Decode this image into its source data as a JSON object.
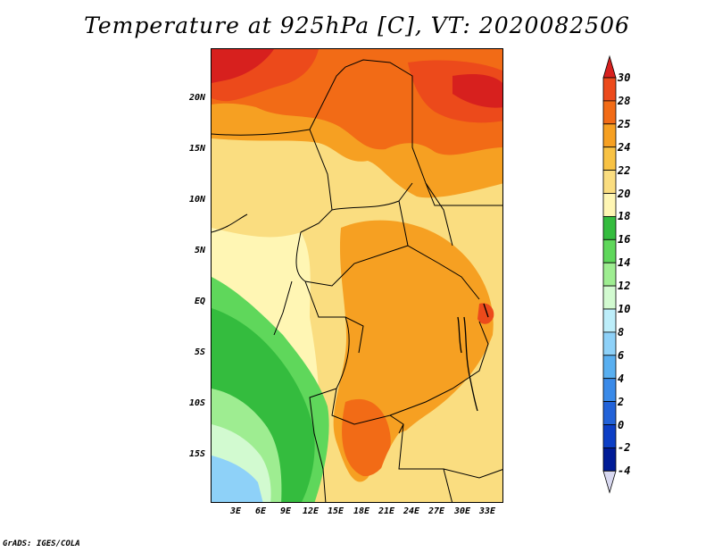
{
  "title": "Temperature at 925hPa [C], VT: 2020082506",
  "credit": "GrADS: IGES/COLA",
  "map": {
    "lat_ticks": [
      "20N",
      "15N",
      "10N",
      "5N",
      "EQ",
      "5S",
      "10S",
      "15S"
    ],
    "lon_ticks": [
      "3E",
      "6E",
      "9E",
      "12E",
      "15E",
      "18E",
      "21E",
      "24E",
      "27E",
      "30E",
      "33E"
    ]
  },
  "colorbar": {
    "labels": [
      "30",
      "28",
      "25",
      "24",
      "22",
      "20",
      "18",
      "16",
      "14",
      "12",
      "10",
      "8",
      "6",
      "4",
      "2",
      "0",
      "-2",
      "-4"
    ],
    "colors": [
      "#d7201e",
      "#ec4a1b",
      "#f26b16",
      "#f6a022",
      "#f8c244",
      "#fadd80",
      "#fff6b4",
      "#34bc3e",
      "#5fd75b",
      "#9eed91",
      "#d2fad0",
      "#bdeefa",
      "#8ed1f8",
      "#59aff0",
      "#3a8ae8",
      "#2262d8",
      "#0c3ec5",
      "#001b96"
    ],
    "top_triangle_color": "#d7201e",
    "bottom_triangle_color": "#d8d8f0"
  }
}
